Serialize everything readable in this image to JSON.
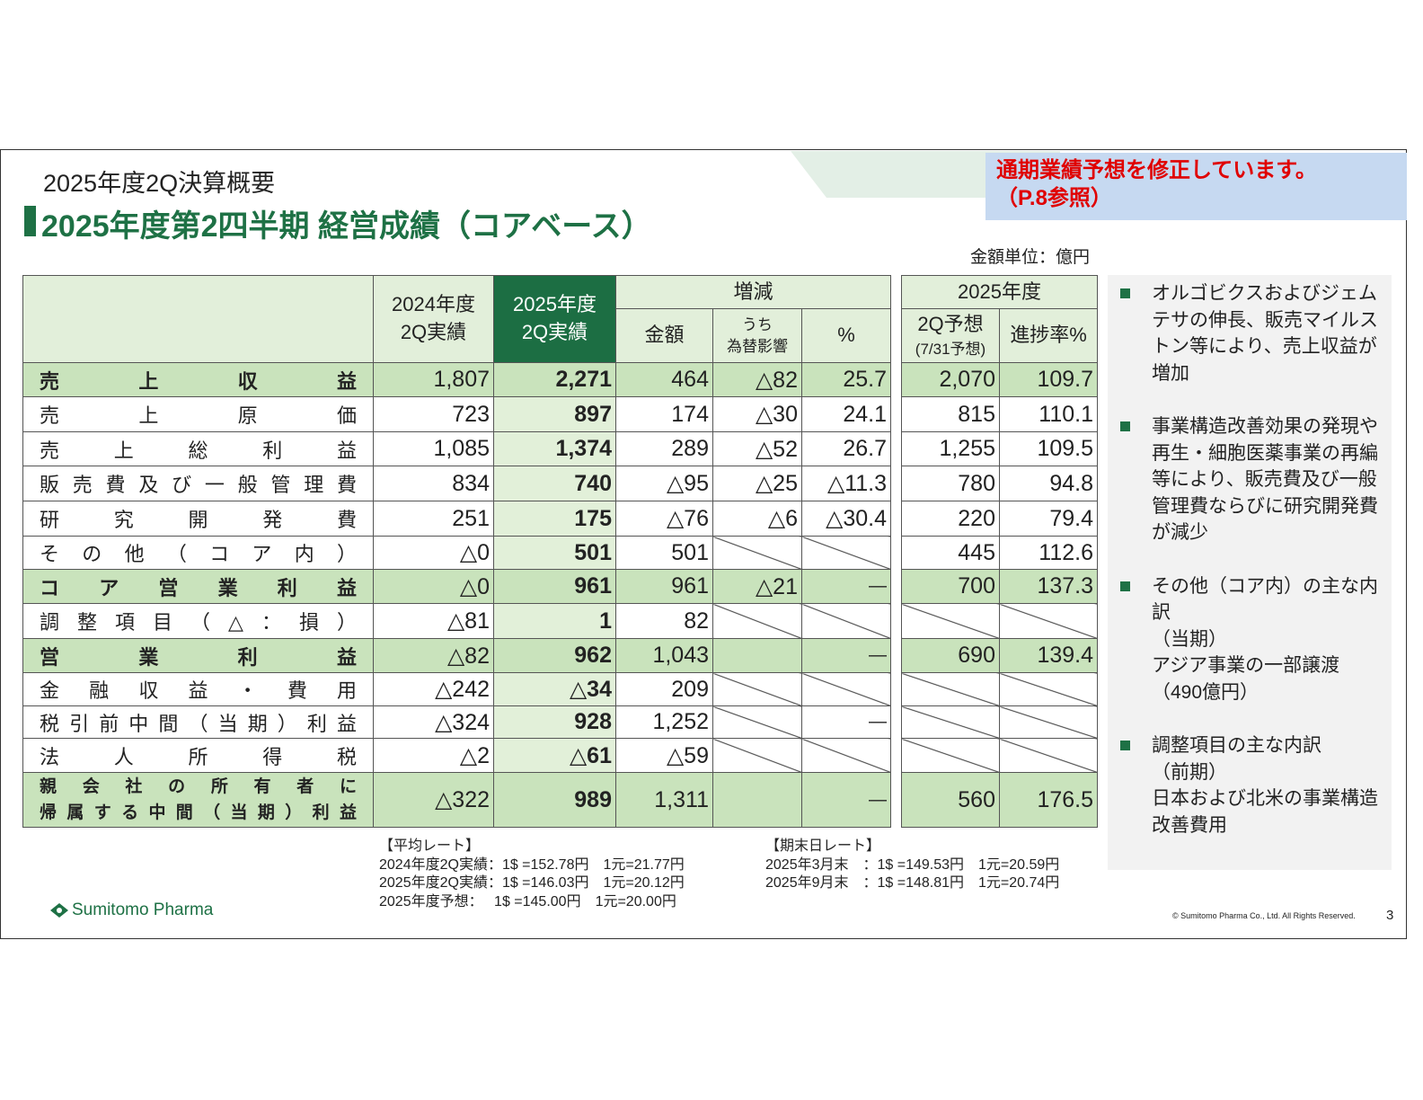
{
  "header": {
    "section": "2025年度2Q決算概要",
    "title": "2025年度第2四半期 経営成績（コアベース）"
  },
  "notice": [
    "通期業績予想を修正しています。",
    "（P.8参照）"
  ],
  "unit": "金額単位：億円",
  "table": {
    "headers": {
      "prev": [
        "2024年度",
        "2Q実績"
      ],
      "curr": [
        "2025年度",
        "2Q実績"
      ],
      "change": "増減",
      "amount": "金額",
      "fx": [
        "うち",
        "為替影響"
      ],
      "pct": "%",
      "fy": "2025年度",
      "forecast": [
        "2Q予想",
        "(7/31予想)"
      ],
      "progress": "進捗率%"
    },
    "rows": [
      {
        "label": [
          "売上収益"
        ],
        "highlight": true,
        "cells": [
          "1,807",
          "2,271",
          "464",
          "△82",
          "25.7",
          "2,070",
          "109.7"
        ]
      },
      {
        "label": [
          "売上原価"
        ],
        "cells": [
          "723",
          "897",
          "174",
          "△30",
          "24.1",
          "815",
          "110.1"
        ]
      },
      {
        "label": [
          "売上総利益"
        ],
        "cells": [
          "1,085",
          "1,374",
          "289",
          "△52",
          "26.7",
          "1,255",
          "109.5"
        ]
      },
      {
        "label": [
          "販売費及び一般管理費"
        ],
        "cells": [
          "834",
          "740",
          "△95",
          "△25",
          "△11.3",
          "780",
          "94.8"
        ]
      },
      {
        "label": [
          "研究開発費"
        ],
        "cells": [
          "251",
          "175",
          "△76",
          "△6",
          "△30.4",
          "220",
          "79.4"
        ]
      },
      {
        "label": [
          "その他（コア内）"
        ],
        "cells": [
          "△0",
          "501",
          "501",
          null,
          null,
          "445",
          "112.6"
        ]
      },
      {
        "label": [
          "コア営業利益"
        ],
        "highlight": true,
        "cells": [
          "△0",
          "961",
          "961",
          "△21",
          "—",
          "700",
          "137.3"
        ]
      },
      {
        "label": [
          "調整項目（△：損）"
        ],
        "cells": [
          "△81",
          "1",
          "82",
          null,
          null,
          null,
          null
        ]
      },
      {
        "label": [
          "営業利益"
        ],
        "highlight": true,
        "cells": [
          "△82",
          "962",
          "1,043",
          null,
          "—",
          "690",
          "139.4"
        ]
      },
      {
        "label": [
          "金融収益・費用"
        ],
        "cells": [
          "△242",
          "△34",
          "209",
          null,
          null,
          null,
          null
        ]
      },
      {
        "label": [
          "税引前中間（当期）利益"
        ],
        "cells": [
          "△324",
          "928",
          "1,252",
          null,
          "—",
          null,
          null
        ]
      },
      {
        "label": [
          "法人所得税"
        ],
        "cells": [
          "△2",
          "△61",
          "△59",
          null,
          null,
          null,
          null
        ]
      },
      {
        "label": [
          "親会社の所有者に",
          "帰属する中間（当期）利益"
        ],
        "highlight": true,
        "cells": [
          "△322",
          "989",
          "1,311",
          null,
          "—",
          "560",
          "176.5"
        ]
      }
    ]
  },
  "rates": {
    "average": {
      "title": "【平均レート】",
      "lines": [
        "2024年度2Q実績：1$ =152.78円　1元=21.77円",
        "2025年度2Q実績：1$ =146.03円　1元=20.12円",
        "2025年度予想：　 1$ =145.00円　1元=20.00円"
      ]
    },
    "period_end": {
      "title": "【期末日レート】",
      "lines": [
        "2025年3月末　：1$ =149.53円　1元=20.59円",
        "2025年9月末　：1$ =148.81円　1元=20.74円"
      ]
    }
  },
  "notes": [
    {
      "lines": [
        "オルゴビクスおよびジェムテサの伸長、販売マイルストン等により、売上収益が増加"
      ]
    },
    {
      "lines": [
        "事業構造改善効果の発現や再生・細胞医薬事業の再編等により、販売費及び一般管理費ならびに研究開発費が減少"
      ]
    },
    {
      "lines": [
        "その他（コア内）の主な内訳",
        "（当期）",
        "アジア事業の一部譲渡",
        "（490億円）"
      ]
    },
    {
      "lines": [
        "調整項目の主な内訳",
        "（前期）",
        "日本および北米の事業構造改善費用"
      ]
    }
  ],
  "footer": {
    "logo": "Sumitomo Pharma",
    "copyright": "© Sumitomo Pharma Co., Ltd. All Rights Reserved.",
    "page": "3"
  }
}
